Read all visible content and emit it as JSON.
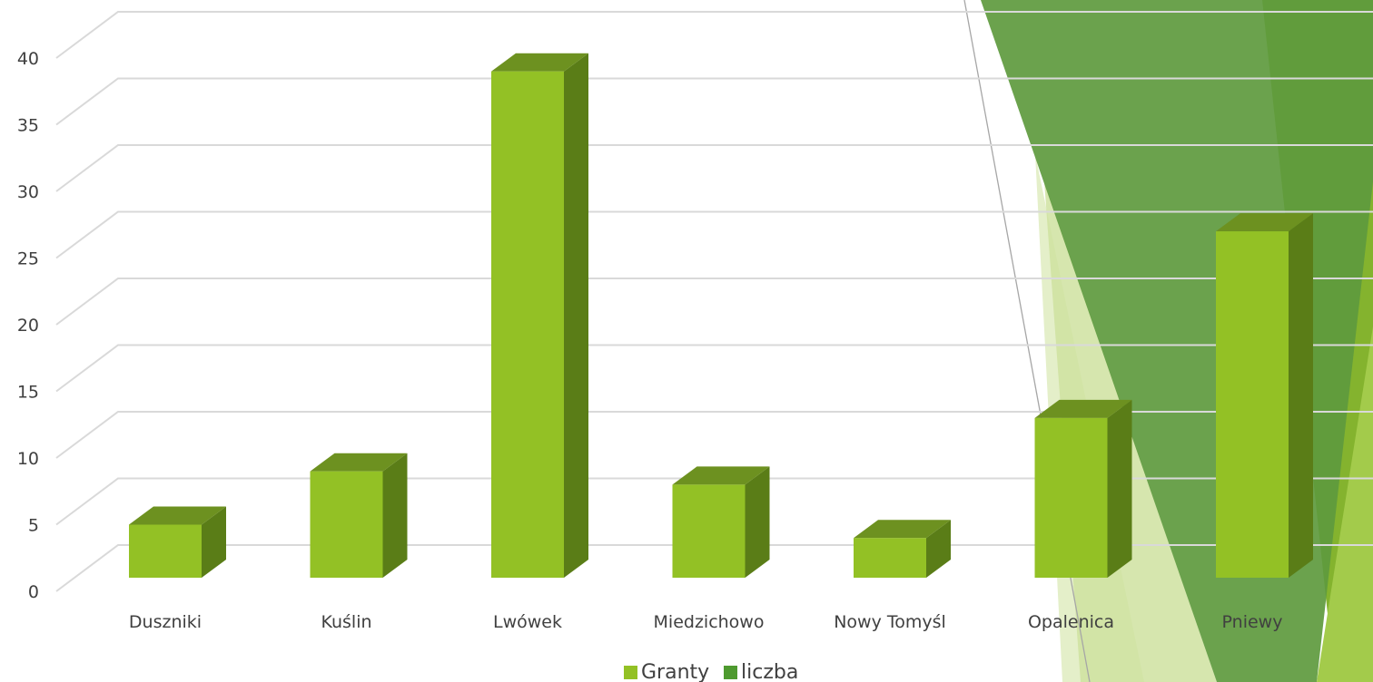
{
  "chart_data": {
    "type": "bar",
    "title": "",
    "xlabel": "",
    "ylabel": "",
    "categories": [
      "Duszniki",
      "Kuślin",
      "Lwówek",
      "Miedzichowo",
      "Nowy Tomyśl",
      "Opalenica",
      "Pniewy"
    ],
    "series": [
      {
        "name": "Granty",
        "values": [
          5,
          9,
          39,
          8,
          4,
          13,
          27
        ]
      },
      {
        "name": "liczba",
        "values": [
          null,
          null,
          null,
          null,
          null,
          null,
          null
        ]
      }
    ],
    "ylim": [
      0,
      40
    ],
    "yticks": [
      0,
      5,
      10,
      15,
      20,
      25,
      30,
      35,
      40
    ],
    "grid": true,
    "legend_position": "bottom",
    "colors": {
      "bar_front": "#93c125",
      "bar_top": "#6d9120",
      "bar_side": "#5a7d17",
      "gridline": "#d9d9d9",
      "legend_granty": "#93c125",
      "legend_liczba": "#4e9a2f"
    }
  },
  "decoration": {
    "colors": {
      "dark_green": "#5c8f3e",
      "mid_green": "#72a43a",
      "bright_green": "#84b32e",
      "light_green": "#d2e3a8",
      "pale_green": "#e6f0cd"
    }
  }
}
